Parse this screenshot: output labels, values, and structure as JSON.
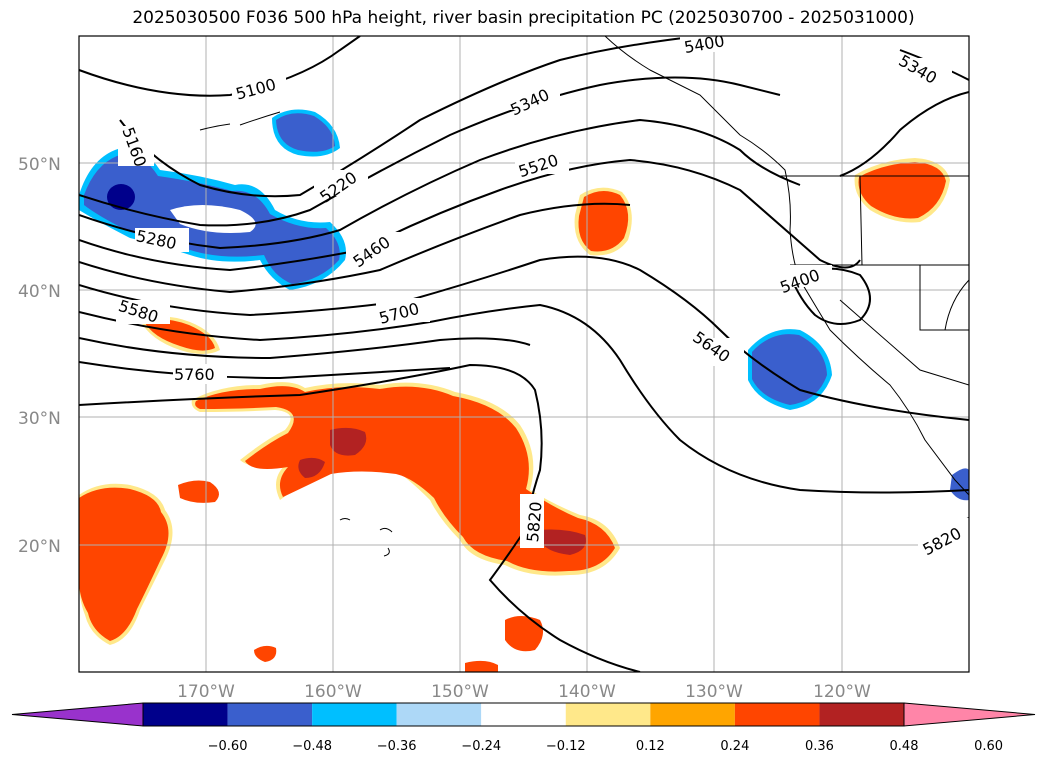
{
  "title": "2025030500 F036 500 hPa height, river basin precipitation PC (2025030700 - 2025031000)",
  "axes": {
    "lat_labels": [
      "50°N",
      "40°N",
      "30°N",
      "20°N"
    ],
    "lon_labels": [
      "170°W",
      "160°W",
      "150°W",
      "140°W",
      "130°W",
      "120°W"
    ]
  },
  "contour_labels": [
    "5100",
    "5160",
    "5220",
    "5280",
    "5340",
    "5400",
    "5400",
    "5340",
    "5460",
    "5520",
    "5580",
    "5640",
    "5700",
    "5760",
    "5820",
    "5820"
  ],
  "colorbar": {
    "colors": [
      "#9932cc",
      "#00008b",
      "#3a5fcd",
      "#00bfff",
      "#add8f7",
      "#ffffff",
      "#ffe88a",
      "#ffa500",
      "#ff4500",
      "#b22222",
      "#ff85a8"
    ],
    "tick_labels": [
      "−0.60",
      "−0.48",
      "−0.36",
      "−0.24",
      "−0.12",
      "0.12",
      "0.24",
      "0.36",
      "0.48",
      "0.60"
    ]
  }
}
